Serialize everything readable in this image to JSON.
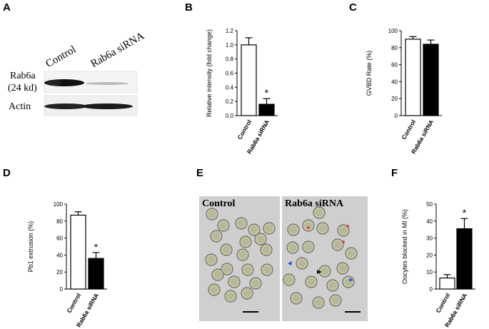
{
  "panels": {
    "A": {
      "letter": "A",
      "lane_labels": [
        "Control",
        "Rab6a siRNA"
      ],
      "row_labels": {
        "rab6a_line1": "Rab6a",
        "rab6a_line2": "(24 kd)",
        "actin": "Actin"
      }
    },
    "B": {
      "letter": "B"
    },
    "C": {
      "letter": "C"
    },
    "D": {
      "letter": "D"
    },
    "E": {
      "letter": "E",
      "left_label": "Control",
      "right_label": "Rab6a siRNA"
    },
    "F": {
      "letter": "F"
    }
  },
  "chart_data": [
    {
      "id": "B",
      "type": "bar",
      "categories": [
        "Control",
        "Rab6a siRNA"
      ],
      "values": [
        1.0,
        0.16
      ],
      "errors": [
        0.1,
        0.08
      ],
      "fills": [
        "#ffffff",
        "#000000"
      ],
      "significance": [
        "",
        "*"
      ],
      "ylabel": "Relative intensity (fold change)",
      "ylim": [
        0,
        1.2
      ],
      "yticks": [
        "0.0",
        "0.2",
        "0.4",
        "0.6",
        "0.8",
        "1.0",
        "1.2"
      ]
    },
    {
      "id": "C",
      "type": "bar",
      "categories": [
        "Control",
        "Rab6a siRNA"
      ],
      "values": [
        90,
        84
      ],
      "errors": [
        3,
        5
      ],
      "fills": [
        "#ffffff",
        "#000000"
      ],
      "significance": [
        "",
        ""
      ],
      "ylabel": "GVBD Rate (%)",
      "ylim": [
        0,
        100
      ],
      "yticks": [
        "0",
        "20",
        "40",
        "60",
        "80",
        "100"
      ]
    },
    {
      "id": "D",
      "type": "bar",
      "categories": [
        "Control",
        "Rab6a siRNA"
      ],
      "values": [
        87,
        36
      ],
      "errors": [
        4,
        7
      ],
      "fills": [
        "#ffffff",
        "#000000"
      ],
      "significance": [
        "",
        "*"
      ],
      "ylabel": "Pb1 extrusion (%)",
      "ylim": [
        0,
        100
      ],
      "yticks": [
        "0",
        "20",
        "40",
        "60",
        "80",
        "100"
      ]
    },
    {
      "id": "F",
      "type": "bar",
      "categories": [
        "Control",
        "Rab6a siRNA"
      ],
      "values": [
        6.5,
        35.5
      ],
      "errors": [
        2,
        6
      ],
      "fills": [
        "#ffffff",
        "#000000"
      ],
      "significance": [
        "",
        "*"
      ],
      "ylabel": "Oocytes blocked in MI (%)",
      "ylim": [
        0,
        50
      ],
      "yticks": [
        "0",
        "10",
        "20",
        "30",
        "40",
        "50"
      ]
    }
  ]
}
